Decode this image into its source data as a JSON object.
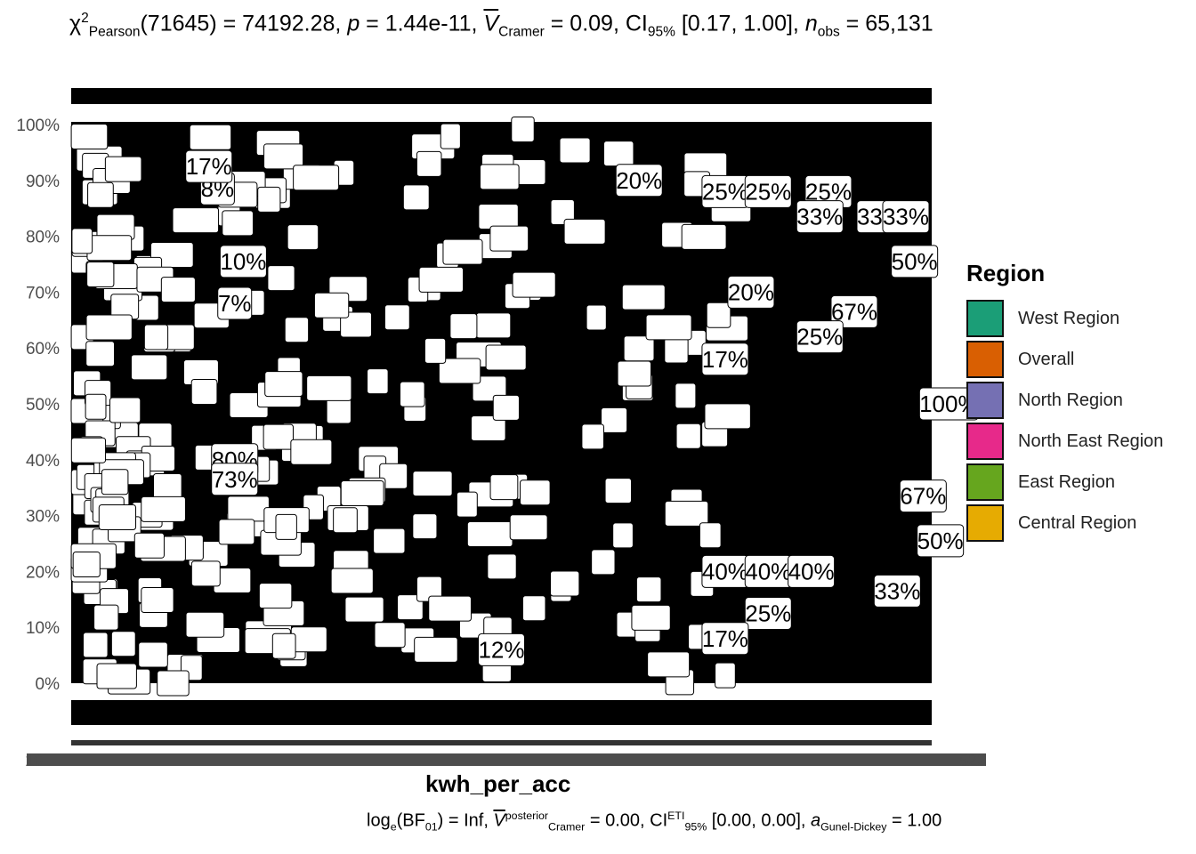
{
  "chart_data": {
    "type": "bar",
    "subtype": "stacked-percentage",
    "title": "χ²Pearson(71645) = 74192.28, p = 1.44e-11, V̂Cramer = 0.09, CI95% [0.17, 1.00], nobs = 65,131",
    "subtitle_parts": {
      "chi_symbol": "χ",
      "chi_sup": "2",
      "chi_sub": "Pearson",
      "df": "(71645)",
      "stat": " = 74192.28, ",
      "p_symbol": "p",
      "p_value": " = 1.44e-11, ",
      "v_symbol": "V",
      "v_sub": "Cramer",
      "v_value": " = 0.09, CI",
      "ci_sub": "95%",
      "ci_value": " [0.17, 1.00], ",
      "n_symbol": "n",
      "n_sub": "obs",
      "n_value": " = 65,131"
    },
    "caption_parts": {
      "log": "log",
      "log_sub": "e",
      "bf": "(BF",
      "bf_sub": "01",
      "bf_value": ") = Inf, ",
      "v_symbol": "V",
      "v_sup": "posterior",
      "v_sub": "Cramer",
      "v_value": " = 0.00, CI",
      "ci_sup": "ETI",
      "ci_sub": "95%",
      "ci_value": " [0.00, 0.00], ",
      "a_symbol": "a",
      "a_sub": "Gunel-Dickey",
      "a_value": " = 1.00"
    },
    "xlabel": "kwh_per_acc",
    "ylabel": "",
    "ylim": [
      0,
      100
    ],
    "y_ticks": [
      "0%",
      "10%",
      "20%",
      "30%",
      "40%",
      "50%",
      "60%",
      "70%",
      "80%",
      "90%",
      "100%"
    ],
    "x_tick_left": "10",
    "x_tick_right": "523",
    "legend": {
      "title": "Region",
      "entries": [
        {
          "name": "West Region",
          "color": "#1b9e77"
        },
        {
          "name": "Overall",
          "color": "#d95f02"
        },
        {
          "name": "North Region",
          "color": "#7570b3"
        },
        {
          "name": "North East Region",
          "color": "#e7298a"
        },
        {
          "name": "East Region",
          "color": "#66a61e"
        },
        {
          "name": "Central Region",
          "color": "#e6ab02"
        }
      ]
    },
    "visible_labels": [
      {
        "text": "20%",
        "x": 0.66,
        "y": 90
      },
      {
        "text": "25%",
        "x": 0.76,
        "y": 88
      },
      {
        "text": "25%",
        "x": 0.81,
        "y": 88
      },
      {
        "text": "25%",
        "x": 0.88,
        "y": 88
      },
      {
        "text": "33%",
        "x": 0.87,
        "y": 83.5
      },
      {
        "text": "33%",
        "x": 0.94,
        "y": 83.5
      },
      {
        "text": "33%",
        "x": 0.97,
        "y": 83.5
      },
      {
        "text": "8%",
        "x": 0.17,
        "y": 88.5
      },
      {
        "text": "17%",
        "x": 0.16,
        "y": 92.5
      },
      {
        "text": "10%",
        "x": 0.2,
        "y": 75.5
      },
      {
        "text": "7%",
        "x": 0.19,
        "y": 68
      },
      {
        "text": "50%",
        "x": 0.98,
        "y": 75.5
      },
      {
        "text": "67%",
        "x": 0.91,
        "y": 66.5
      },
      {
        "text": "20%",
        "x": 0.79,
        "y": 70
      },
      {
        "text": "25%",
        "x": 0.87,
        "y": 62
      },
      {
        "text": "17%",
        "x": 0.76,
        "y": 58
      },
      {
        "text": "100%",
        "x": 1.02,
        "y": 50
      },
      {
        "text": "80%",
        "x": 0.19,
        "y": 40
      },
      {
        "text": "73%",
        "x": 0.19,
        "y": 36.5
      },
      {
        "text": "67%",
        "x": 0.99,
        "y": 33.5
      },
      {
        "text": "50%",
        "x": 1.01,
        "y": 25.5
      },
      {
        "text": "40%",
        "x": 0.76,
        "y": 20
      },
      {
        "text": "40%",
        "x": 0.81,
        "y": 20
      },
      {
        "text": "40%",
        "x": 0.86,
        "y": 20
      },
      {
        "text": "33%",
        "x": 0.96,
        "y": 16.5
      },
      {
        "text": "25%",
        "x": 0.81,
        "y": 12.5
      },
      {
        "text": "17%",
        "x": 0.76,
        "y": 8
      },
      {
        "text": "12%",
        "x": 0.5,
        "y": 6
      }
    ]
  }
}
